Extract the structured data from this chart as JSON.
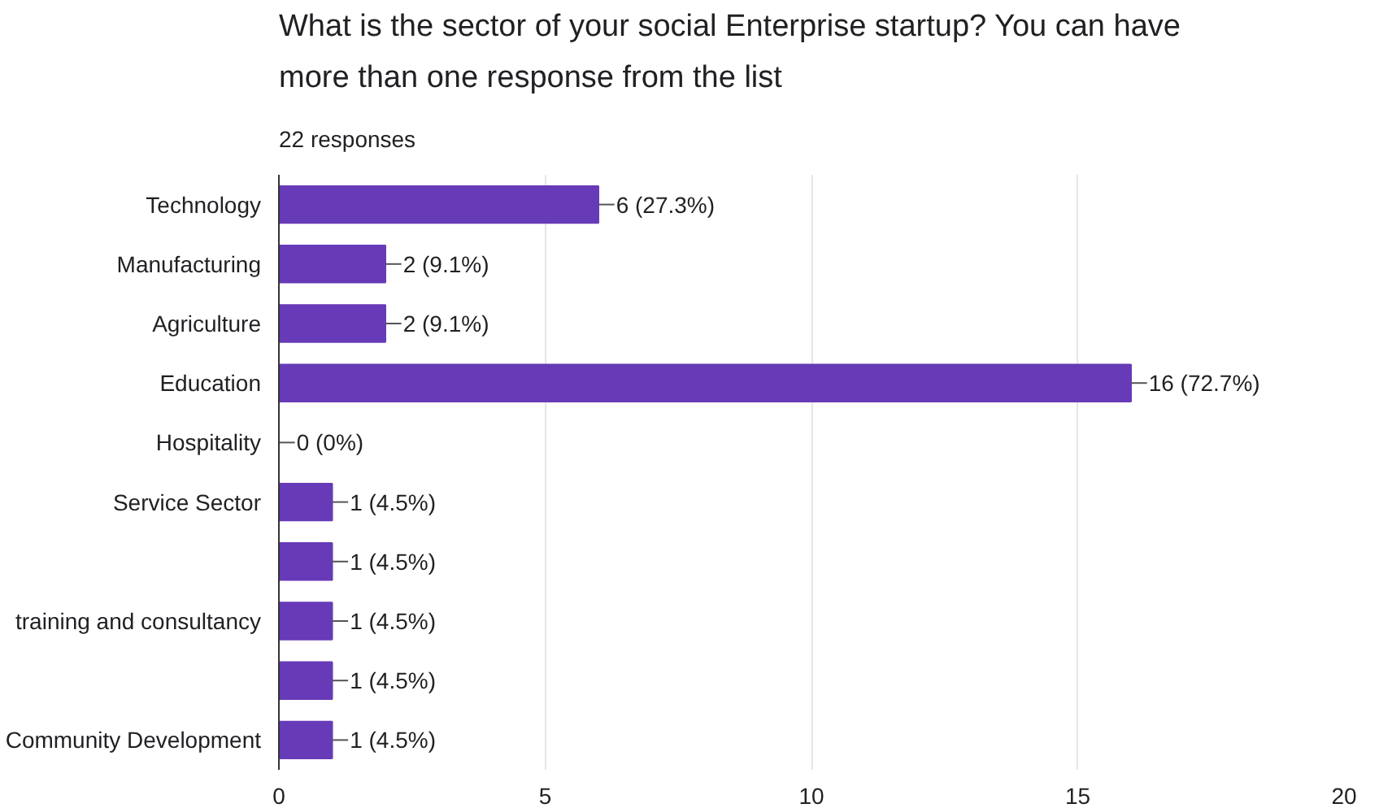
{
  "chart_data": {
    "type": "bar",
    "orientation": "horizontal",
    "title": "What is the sector of your social Enterprise startup? You can have more than one response from the list",
    "subtitle": "22 responses",
    "categories": [
      "Technology",
      "Manufacturing",
      "Agriculture",
      "Education",
      "Hospitality",
      "Service Sector",
      null,
      "training and consultancy",
      null,
      "Community Development"
    ],
    "values": [
      6,
      2,
      2,
      16,
      0,
      1,
      1,
      1,
      1,
      1
    ],
    "value_labels": [
      "6 (27.3%)",
      "2 (9.1%)",
      "2 (9.1%)",
      "16 (72.7%)",
      "0 (0%)",
      "1 (4.5%)",
      "1 (4.5%)",
      "1 (4.5%)",
      "1 (4.5%)",
      "1 (4.5%)"
    ],
    "color": "#673ab7",
    "xlim": [
      0,
      20
    ],
    "xticks": [
      0,
      5,
      10,
      15,
      20
    ],
    "grid": "x"
  }
}
